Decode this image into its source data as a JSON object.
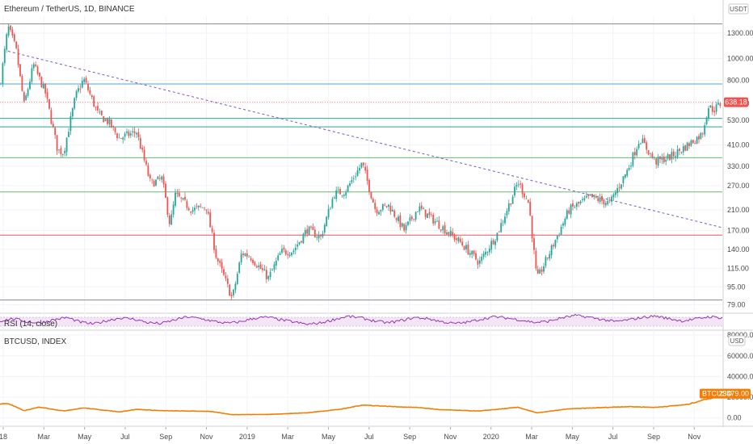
{
  "header": {
    "main_title": "Ethereum / TetherUS, 1D, BINANCE",
    "rsi_label": "RSI (14, close)",
    "btc_title": "BTCUSD, INDEX",
    "main_unit": "USDT",
    "btc_unit": "USD"
  },
  "colors": {
    "up": "#26a69a",
    "down": "#ef5350",
    "rsi": "#8e24aa",
    "btc": "#f57c00",
    "resistance_blue": "#42a5f5",
    "support_teal": "#26a69a",
    "support_green": "#66bb6a",
    "red_level": "#ef5350",
    "trendline": "#7e57c2"
  },
  "chart_data": [
    {
      "type": "candlestick",
      "title": "Ethereum / TetherUS, 1D, BINANCE",
      "scale": "log",
      "ylim": [
        73,
        1550
      ],
      "y_ticks": [
        "1300.00",
        "1000.00",
        "800.00",
        "630.00",
        "530.00",
        "410.00",
        "330.00",
        "270.00",
        "210.00",
        "170.00",
        "140.00",
        "115.00",
        "95.00",
        "79.00"
      ],
      "x_ticks": [
        "18",
        "Mar",
        "May",
        "Jul",
        "Sep",
        "Nov",
        "2019",
        "Mar",
        "May",
        "Jul",
        "Sep",
        "Nov",
        "2020",
        "Mar",
        "May",
        "Jul",
        "Sep",
        "Nov"
      ],
      "x_range": [
        "2018-01-01",
        "2020-12-15"
      ],
      "last_price": "638.18",
      "price_path": [
        [
          "2018-01-01",
          760
        ],
        [
          "2018-01-13",
          1390
        ],
        [
          "2018-01-25",
          1100
        ],
        [
          "2018-02-06",
          620
        ],
        [
          "2018-02-20",
          940
        ],
        [
          "2018-03-10",
          700
        ],
        [
          "2018-03-28",
          390
        ],
        [
          "2018-04-06",
          380
        ],
        [
          "2018-04-24",
          680
        ],
        [
          "2018-05-06",
          810
        ],
        [
          "2018-05-28",
          560
        ],
        [
          "2018-06-12",
          520
        ],
        [
          "2018-06-28",
          440
        ],
        [
          "2018-07-24",
          470
        ],
        [
          "2018-08-14",
          275
        ],
        [
          "2018-08-31",
          290
        ],
        [
          "2018-09-12",
          180
        ],
        [
          "2018-09-20",
          245
        ],
        [
          "2018-10-15",
          210
        ],
        [
          "2018-11-05",
          218
        ],
        [
          "2018-11-20",
          130
        ],
        [
          "2018-12-14",
          84
        ],
        [
          "2018-12-28",
          135
        ],
        [
          "2019-01-10",
          130
        ],
        [
          "2019-02-06",
          104
        ],
        [
          "2019-02-25",
          136
        ],
        [
          "2019-03-15",
          138
        ],
        [
          "2019-04-05",
          172
        ],
        [
          "2019-04-25",
          158
        ],
        [
          "2019-05-15",
          248
        ],
        [
          "2019-06-01",
          255
        ],
        [
          "2019-06-26",
          340
        ],
        [
          "2019-07-16",
          210
        ],
        [
          "2019-08-05",
          220
        ],
        [
          "2019-08-28",
          170
        ],
        [
          "2019-09-18",
          215
        ],
        [
          "2019-10-10",
          190
        ],
        [
          "2019-11-20",
          150
        ],
        [
          "2019-12-18",
          122
        ],
        [
          "2020-01-14",
          165
        ],
        [
          "2020-02-14",
          280
        ],
        [
          "2020-03-01",
          225
        ],
        [
          "2020-03-13",
          102
        ],
        [
          "2020-04-01",
          135
        ],
        [
          "2020-04-30",
          210
        ],
        [
          "2020-06-01",
          240
        ],
        [
          "2020-06-30",
          225
        ],
        [
          "2020-07-27",
          320
        ],
        [
          "2020-08-14",
          440
        ],
        [
          "2020-09-06",
          345
        ],
        [
          "2020-09-30",
          365
        ],
        [
          "2020-10-24",
          410
        ],
        [
          "2020-11-15",
          460
        ],
        [
          "2020-11-24",
          610
        ],
        [
          "2020-12-02",
          590
        ],
        [
          "2020-12-15",
          638
        ]
      ],
      "levels": [
        {
          "kind": "gray",
          "value": 1430
        },
        {
          "kind": "resistance_blue",
          "value": 770
        },
        {
          "kind": "support_teal",
          "value": 540
        },
        {
          "kind": "support_teal",
          "value": 495
        },
        {
          "kind": "support_green",
          "value": 360
        },
        {
          "kind": "support_green",
          "value": 253
        },
        {
          "kind": "red_level",
          "value": 162
        },
        {
          "kind": "gray",
          "value": 83
        }
      ],
      "trendline": {
        "from": [
          "2018-01-13",
          1080
        ],
        "to": [
          "2020-12-15",
          175
        ]
      }
    },
    {
      "type": "line",
      "title": "RSI (14, close)",
      "series": [
        {
          "values": [
            52,
            58,
            50,
            47,
            55,
            61,
            49,
            44,
            53,
            60,
            57,
            48,
            45,
            54,
            63,
            58,
            51,
            46,
            50,
            59,
            62,
            55,
            49,
            43,
            47,
            56,
            64,
            60,
            52,
            47,
            53,
            61,
            58,
            50,
            45,
            49,
            57,
            63,
            59,
            54,
            48,
            51,
            60,
            66,
            62,
            56,
            50,
            55,
            61,
            65,
            58,
            52,
            57,
            63,
            60
          ]
        }
      ]
    },
    {
      "type": "line",
      "title": "BTCUSD, INDEX",
      "ylim": [
        -8000,
        84000
      ],
      "y_ticks": [
        "80000.00",
        "60000.00",
        "40000.00",
        "20000.00",
        "0.00"
      ],
      "last_value": "23479.00",
      "last_label": "BTCUSD",
      "series": [
        {
          "name": "BTCUSD",
          "points": [
            [
              "2018-01-01",
              13500
            ],
            [
              "2018-01-13",
              14000
            ],
            [
              "2018-02-06",
              7000
            ],
            [
              "2018-03-01",
              10500
            ],
            [
              "2018-04-06",
              6800
            ],
            [
              "2018-05-06",
              9700
            ],
            [
              "2018-06-28",
              5900
            ],
            [
              "2018-07-24",
              8300
            ],
            [
              "2018-09-01",
              7000
            ],
            [
              "2018-11-10",
              6400
            ],
            [
              "2018-12-14",
              3200
            ],
            [
              "2019-02-06",
              3400
            ],
            [
              "2019-04-05",
              5000
            ],
            [
              "2019-05-28",
              8700
            ],
            [
              "2019-06-26",
              12500
            ],
            [
              "2019-08-10",
              11000
            ],
            [
              "2019-09-20",
              10000
            ],
            [
              "2019-10-20",
              8000
            ],
            [
              "2019-12-18",
              6700
            ],
            [
              "2020-02-14",
              10300
            ],
            [
              "2020-03-13",
              4900
            ],
            [
              "2020-04-30",
              8800
            ],
            [
              "2020-06-01",
              9600
            ],
            [
              "2020-07-27",
              11000
            ],
            [
              "2020-09-06",
              10200
            ],
            [
              "2020-10-24",
              13000
            ],
            [
              "2020-11-24",
              18800
            ],
            [
              "2020-12-02",
              19200
            ],
            [
              "2020-12-15",
              23479
            ]
          ]
        }
      ]
    }
  ]
}
